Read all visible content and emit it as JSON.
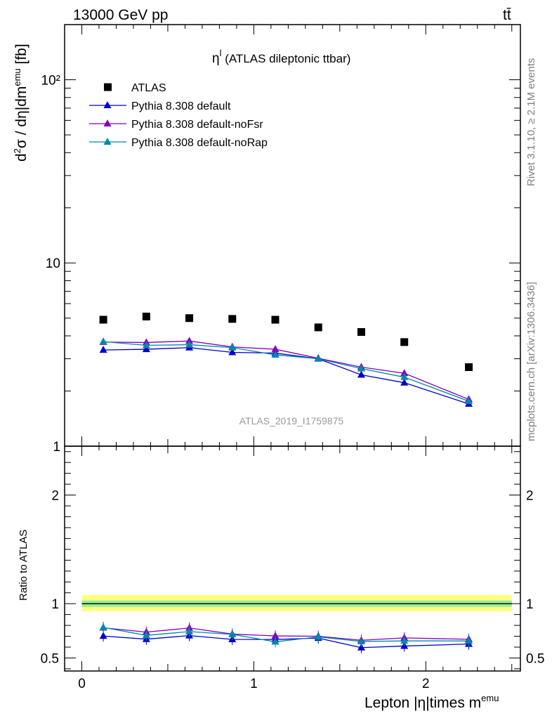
{
  "header": {
    "left": "13000 GeV pp",
    "right": "tt̄"
  },
  "plot_title": {
    "main": "η",
    "sup": "l",
    "rest": " (ATLAS dileptonic ttbar)"
  },
  "side_text": {
    "rivet": "Rivet 3.1.10, ≥ 2.1M events",
    "mcplots": "mcplots.cern.ch [arXiv:1306.3436]"
  },
  "watermark": "ATLAS_2019_I1759875",
  "colors": {
    "data": "#000000",
    "default": "#0000cc",
    "noFsr": "#7f00bf",
    "noRap": "#0088aa",
    "band_outer": "#ffff80",
    "band_inner": "#99ee99"
  },
  "chart_data": [
    {
      "type": "scatter",
      "panel": "main",
      "ylabel": "d²σ / dη|dm^emu [fb]",
      "yscale": "log",
      "ylim": [
        1,
        200
      ],
      "xlim": [
        -0.1,
        2.55
      ],
      "yticks": [
        "1",
        "10",
        "10²"
      ],
      "legend_position": "top-left",
      "x": [
        0.125,
        0.375,
        0.625,
        0.875,
        1.125,
        1.375,
        1.625,
        1.875,
        2.25
      ],
      "series": [
        {
          "name": "ATLAS",
          "style": "marker",
          "values": [
            4.9,
            5.1,
            5.0,
            4.95,
            4.9,
            4.45,
            4.2,
            3.7,
            2.7
          ]
        },
        {
          "name": "Pythia 8.308 default",
          "values": [
            3.35,
            3.38,
            3.45,
            3.25,
            3.22,
            3.0,
            2.45,
            2.22,
            1.7
          ]
        },
        {
          "name": "Pythia 8.308 default-noFsr",
          "values": [
            3.7,
            3.68,
            3.75,
            3.48,
            3.38,
            3.02,
            2.7,
            2.5,
            1.8
          ]
        },
        {
          "name": "Pythia 8.308 default-noRap",
          "values": [
            3.72,
            3.55,
            3.58,
            3.45,
            3.15,
            3.0,
            2.65,
            2.38,
            1.76
          ]
        }
      ]
    },
    {
      "type": "line",
      "panel": "ratio",
      "ylabel": "Ratio to ATLAS",
      "xlabel": "Lepton |η|times m",
      "xlabel_sup": "emu",
      "ylim": [
        0.38,
        2.45
      ],
      "xlim": [
        -0.1,
        2.55
      ],
      "xticks": [
        "0",
        "1",
        "2"
      ],
      "yticks": [
        "0.5",
        "1",
        "2"
      ],
      "x": [
        0.125,
        0.375,
        0.625,
        0.875,
        1.125,
        1.375,
        1.625,
        1.875,
        2.25
      ],
      "band": {
        "inner": [
          0.97,
          1.03
        ],
        "outer": [
          0.93,
          1.08
        ]
      },
      "series": [
        {
          "name": "Pythia 8.308 default",
          "values": [
            0.702,
            0.673,
            0.706,
            0.671,
            0.67,
            0.683,
            0.595,
            0.61,
            0.628
          ]
        },
        {
          "name": "Pythia 8.308 default-noFsr",
          "values": [
            0.778,
            0.738,
            0.776,
            0.72,
            0.703,
            0.7,
            0.663,
            0.685,
            0.672
          ]
        },
        {
          "name": "Pythia 8.308 default-noRap",
          "values": [
            0.781,
            0.708,
            0.743,
            0.717,
            0.649,
            0.694,
            0.652,
            0.657,
            0.657
          ]
        }
      ]
    }
  ]
}
